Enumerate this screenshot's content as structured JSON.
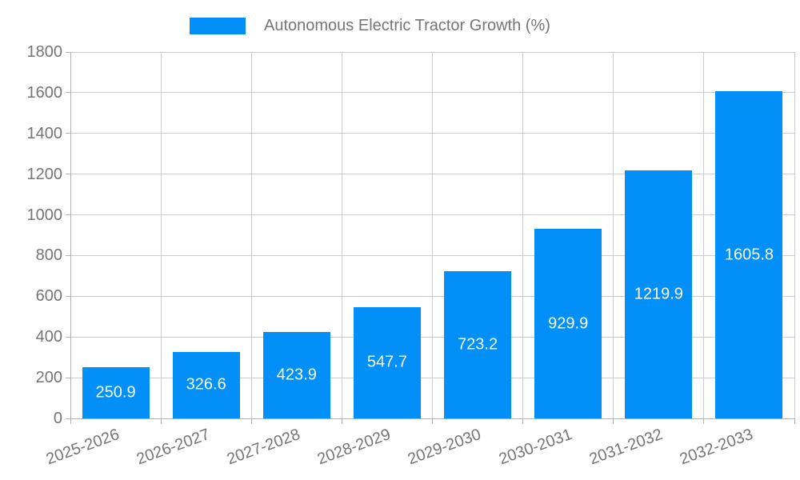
{
  "legend": {
    "label": "Autonomous Electric Tractor Growth (%)",
    "swatch_color": "#0290f8"
  },
  "chart_data": {
    "type": "bar",
    "title": "Autonomous Electric Tractor Growth (%)",
    "categories": [
      "2025-2026",
      "2026-2027",
      "2027-2028",
      "2028-2029",
      "2029-2030",
      "2030-2031",
      "2031-2032",
      "2032-2033"
    ],
    "values": [
      250.9,
      326.6,
      423.9,
      547.7,
      723.2,
      929.9,
      1219.9,
      1605.8
    ],
    "xlabel": "",
    "ylabel": "",
    "ylim": [
      0,
      1800
    ],
    "ytick_step": 200,
    "grid": true,
    "legend_position": "top-center",
    "colors": {
      "bar": "#0290f8",
      "grid": "#cccccc",
      "axis": "#b0b0b0",
      "tick_label": "#757575",
      "value_label": "#ffffff",
      "background": "#ffffff"
    }
  }
}
